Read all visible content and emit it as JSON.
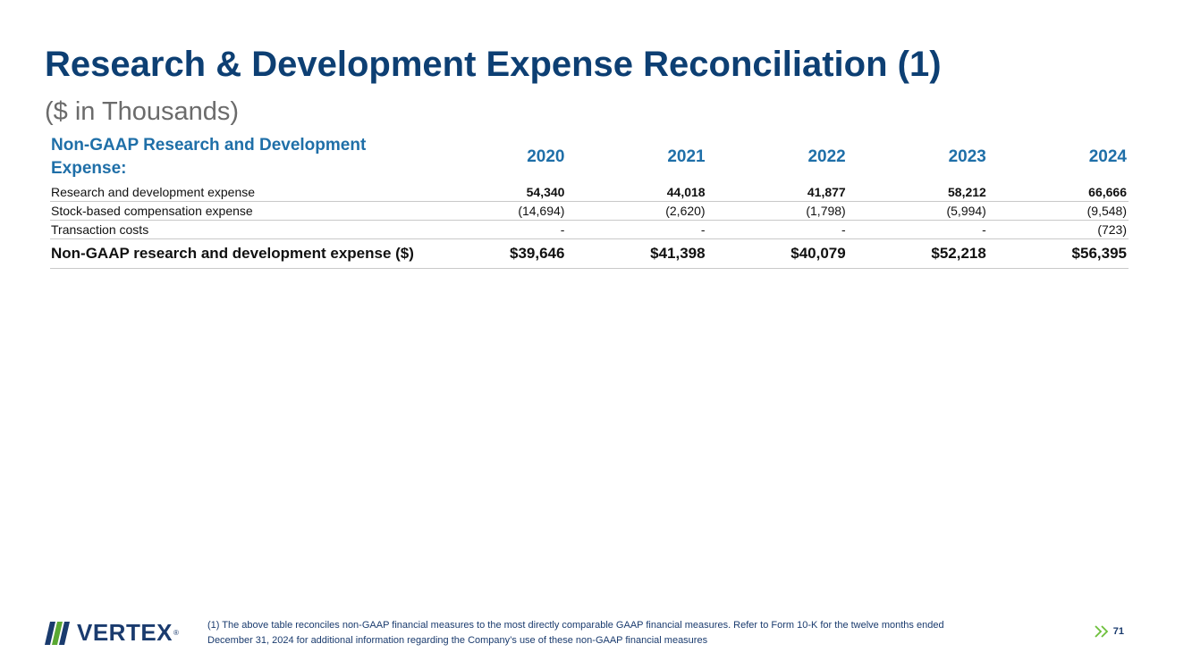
{
  "slide": {
    "title": "Research & Development Expense Reconciliation (1)",
    "subtitle": "($ in Thousands)"
  },
  "table": {
    "header_label": "Non-GAAP Research and Development Expense:",
    "years": [
      "2020",
      "2021",
      "2022",
      "2023",
      "2024"
    ],
    "rows": [
      {
        "label": "Research and development expense",
        "values": [
          "54,340",
          "44,018",
          "41,877",
          "58,212",
          "66,666"
        ]
      },
      {
        "label": "Stock-based compensation expense",
        "values": [
          "(14,694)",
          "(2,620)",
          "(1,798)",
          "(5,994)",
          "(9,548)"
        ]
      },
      {
        "label": "Transaction costs",
        "values": [
          "-",
          "-",
          "-",
          "-",
          "(723)"
        ]
      },
      {
        "label": "Non-GAAP research and development expense ($)",
        "values": [
          "$39,646",
          "$41,398",
          "$40,079",
          "$52,218",
          "$56,395"
        ]
      }
    ]
  },
  "footer": {
    "logo_text": "VERTEX",
    "logo_reg": "®",
    "footnote_line1": "(1) The above table reconciles non-GAAP financial measures to the most directly comparable GAAP financial measures. Refer to Form 10-K for the twelve months ended",
    "footnote_line2": "December 31, 2024 for additional information regarding the Company’s use of these non-GAAP financial measures",
    "page_number": "71"
  },
  "colors": {
    "title": "#0d3f73",
    "header": "#1f6fa8",
    "subtitle": "#6b6b6b",
    "logo_green": "#5aa832",
    "logo_navy": "#1a3b6e",
    "chevron": "#6cbf3a"
  },
  "icons": {
    "logo": "vertex-logo-mark-icon",
    "next": "double-chevron-right-icon"
  }
}
